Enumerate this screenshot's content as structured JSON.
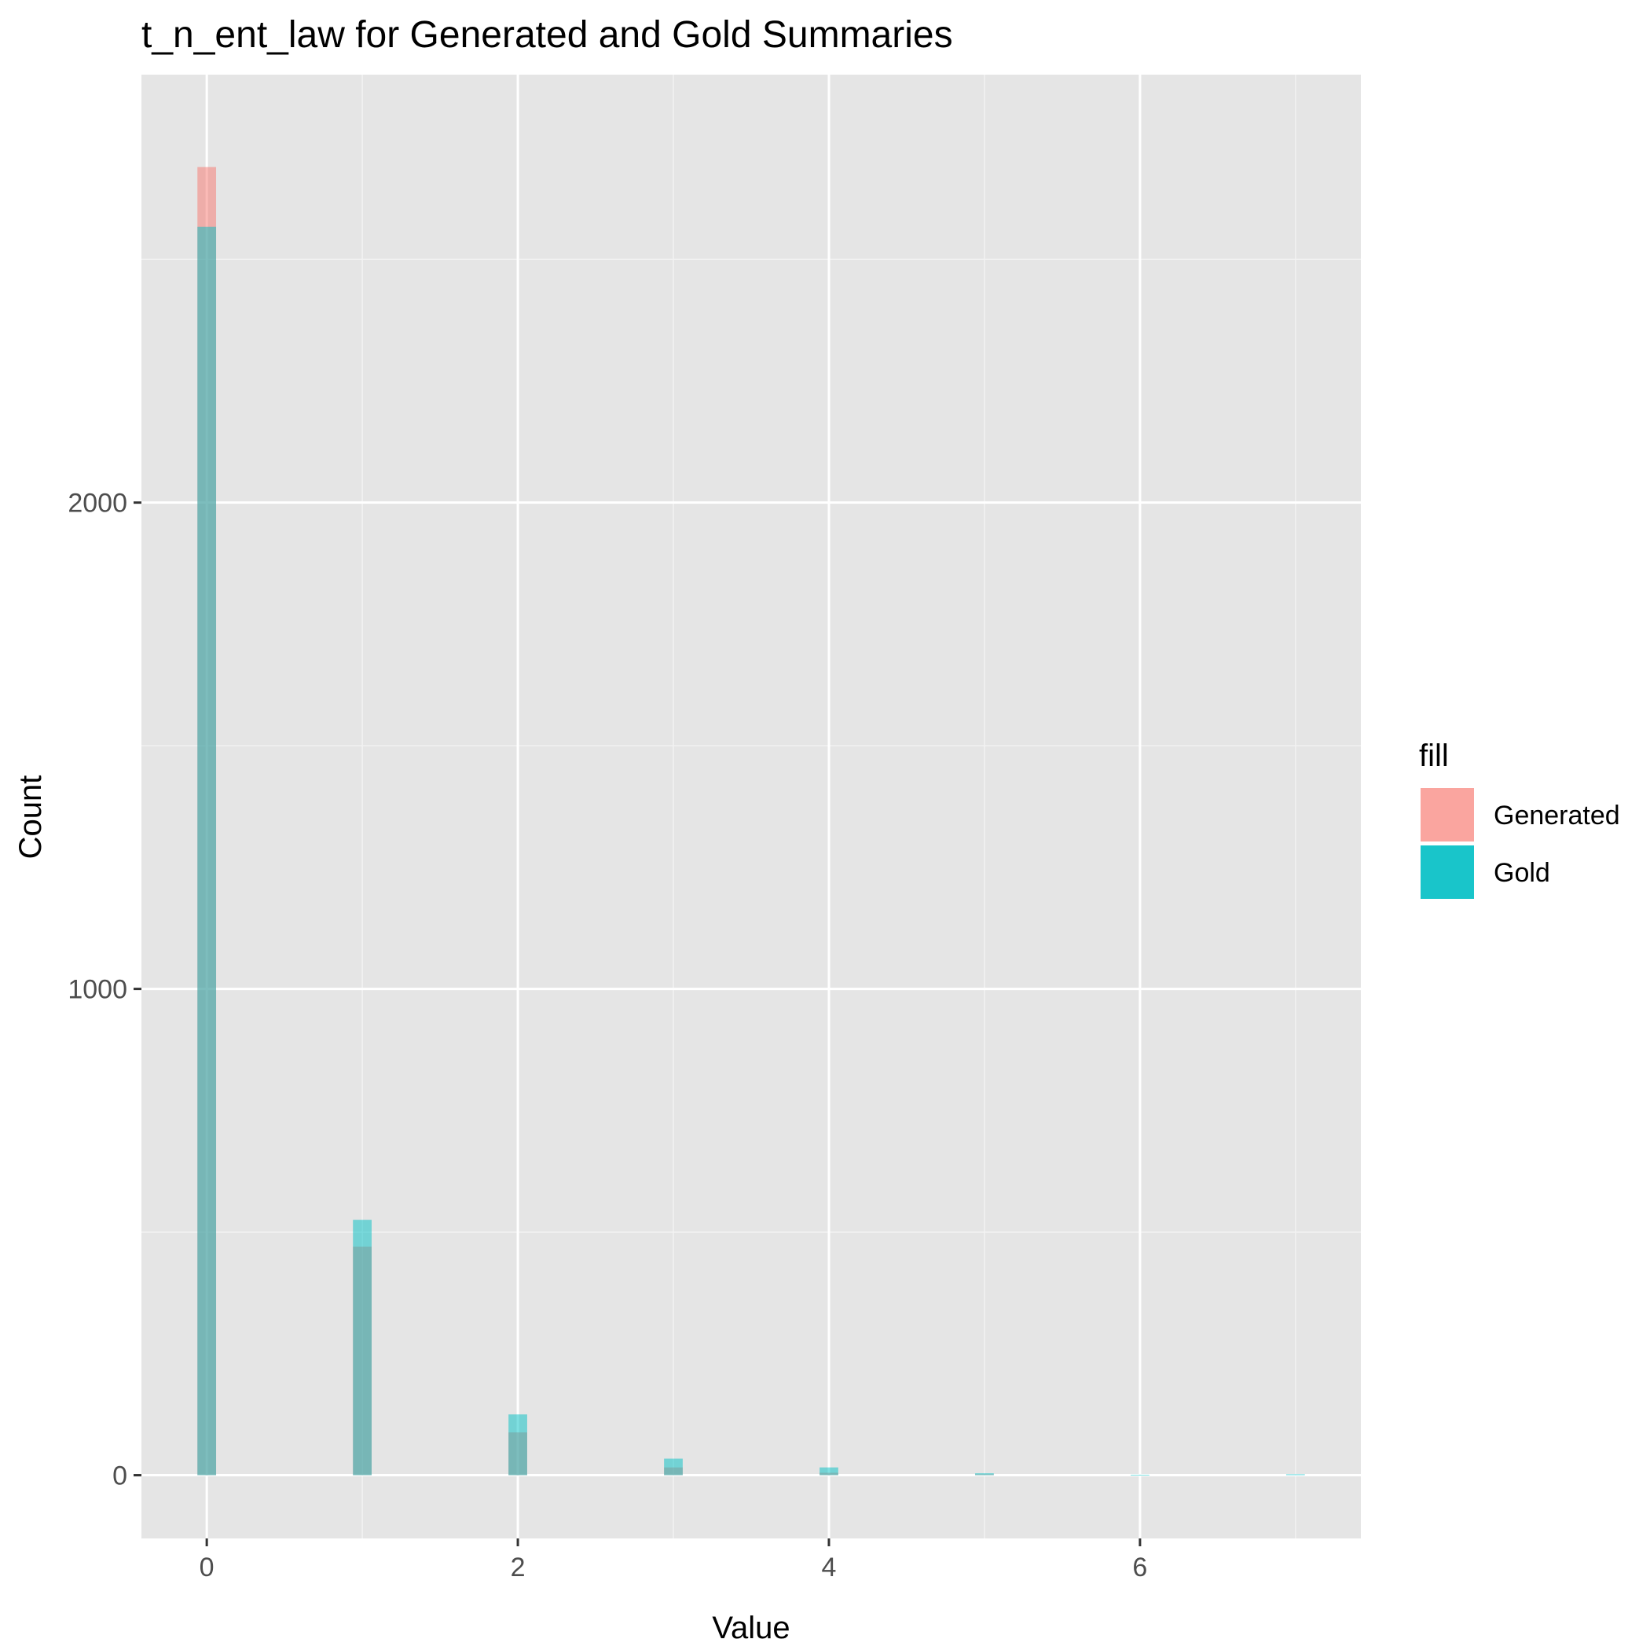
{
  "chart_data": {
    "type": "bar",
    "title": "t_n_ent_law for Generated and Gold Summaries",
    "xlabel": "Value",
    "ylabel": "Count",
    "xlim": [
      -0.42,
      7.42
    ],
    "ylim": [
      -130,
      2880
    ],
    "x_ticks": [
      0,
      2,
      4,
      6
    ],
    "x_tick_labels": [
      "0",
      "2",
      "4",
      "6"
    ],
    "x_minor_ticks": [
      1,
      3,
      5,
      7
    ],
    "y_ticks": [
      0,
      1000,
      2000
    ],
    "y_tick_labels": [
      "0",
      "1000",
      "2000"
    ],
    "y_minor_ticks": [
      500,
      1500,
      2500
    ],
    "grid": true,
    "bin_width": 0.12,
    "bar_opacity": 0.5,
    "x": [
      0,
      1,
      2,
      3,
      4,
      5,
      6,
      7
    ],
    "series": [
      {
        "name": "Generated",
        "color": "#F8766D",
        "values": [
          2690,
          470,
          88,
          16,
          5,
          2,
          0,
          0
        ]
      },
      {
        "name": "Gold",
        "color": "#00BFC4",
        "values": [
          2567,
          525,
          125,
          34,
          16,
          4,
          1,
          2
        ]
      }
    ],
    "legend": {
      "title": "fill",
      "position": "right"
    }
  }
}
